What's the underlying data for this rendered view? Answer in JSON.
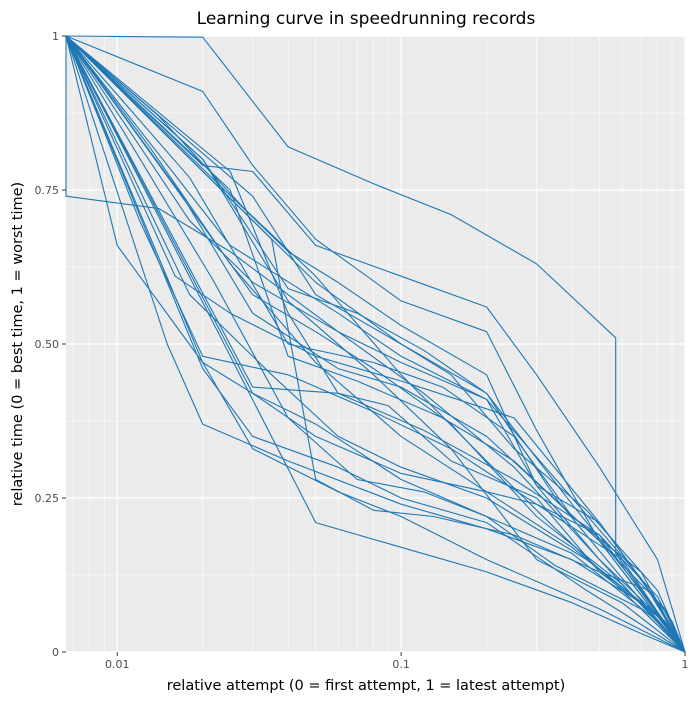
{
  "chart_data": {
    "type": "line",
    "title": "Learning curve in speedrunning records",
    "xlabel": "relative attempt (0 = first attempt, 1 = latest attempt)",
    "ylabel": "relative time (0 = best time, 1 = worst time)",
    "x_scale": "log10",
    "xlim": [
      0.0066,
      1
    ],
    "ylim": [
      0,
      1
    ],
    "x_ticks": [
      {
        "value": 0.01,
        "label": "0.01"
      },
      {
        "value": 0.1,
        "label": "0.1"
      },
      {
        "value": 1,
        "label": "1"
      }
    ],
    "y_ticks": [
      {
        "value": 0,
        "label": "0"
      },
      {
        "value": 0.25,
        "label": "0.25"
      },
      {
        "value": 0.5,
        "label": "0.50"
      },
      {
        "value": 0.75,
        "label": "0.75"
      },
      {
        "value": 1,
        "label": "1"
      }
    ],
    "grid": true,
    "line_color": "#1f77b4",
    "panel_color": "#ebebeb",
    "series": [
      {
        "x": [
          0.0066,
          0.02,
          0.04,
          0.08,
          0.15,
          0.3,
          0.57,
          0.57,
          1
        ],
        "y": [
          1,
          0.998,
          0.82,
          0.76,
          0.71,
          0.63,
          0.51,
          0.16,
          0
        ]
      },
      {
        "x": [
          0.0066,
          0.02,
          0.03,
          0.05,
          0.1,
          0.2,
          0.3,
          0.5,
          1
        ],
        "y": [
          1,
          0.91,
          0.79,
          0.67,
          0.57,
          0.52,
          0.36,
          0.18,
          0
        ]
      },
      {
        "x": [
          0.0066,
          0.02,
          0.04,
          0.07,
          0.12,
          0.2,
          0.4,
          0.7,
          1
        ],
        "y": [
          1,
          0.8,
          0.59,
          0.55,
          0.49,
          0.42,
          0.24,
          0.1,
          0
        ]
      },
      {
        "x": [
          0.0066,
          0.014,
          0.028,
          0.05,
          0.1,
          0.2,
          0.35,
          0.6,
          1
        ],
        "y": [
          1,
          0.87,
          0.72,
          0.61,
          0.45,
          0.31,
          0.2,
          0.1,
          0
        ]
      },
      {
        "x": [
          0.0066,
          0.012,
          0.02,
          0.04,
          0.08,
          0.15,
          0.3,
          0.6,
          1
        ],
        "y": [
          1,
          0.7,
          0.48,
          0.45,
          0.39,
          0.33,
          0.24,
          0.15,
          0
        ]
      },
      {
        "x": [
          0.0066,
          0.015,
          0.02,
          0.04,
          0.1,
          0.2,
          0.4,
          0.7,
          1
        ],
        "y": [
          1,
          0.5,
          0.37,
          0.31,
          0.24,
          0.2,
          0.15,
          0.08,
          0
        ]
      },
      {
        "x": [
          0.0066,
          0.01,
          0.02,
          0.03,
          0.06,
          0.1,
          0.2,
          0.5,
          1
        ],
        "y": [
          1,
          0.66,
          0.47,
          0.33,
          0.26,
          0.22,
          0.15,
          0.07,
          0
        ]
      },
      {
        "x": [
          0.0066,
          0.013,
          0.025,
          0.05,
          0.1,
          0.2,
          0.4,
          0.8,
          1
        ],
        "y": [
          1,
          0.82,
          0.63,
          0.47,
          0.35,
          0.26,
          0.17,
          0.06,
          0
        ]
      },
      {
        "x": [
          0.0066,
          0.0066,
          0.014,
          0.025,
          0.06,
          0.12,
          0.25,
          0.5,
          1
        ],
        "y": [
          1,
          0.74,
          0.72,
          0.65,
          0.52,
          0.42,
          0.3,
          0.15,
          0
        ]
      },
      {
        "x": [
          0.0066,
          0.02,
          0.03,
          0.05,
          0.1,
          0.2,
          0.3,
          0.5,
          0.8,
          1
        ],
        "y": [
          1,
          0.79,
          0.78,
          0.66,
          0.61,
          0.56,
          0.45,
          0.3,
          0.15,
          0
        ]
      },
      {
        "x": [
          0.0066,
          0.018,
          0.03,
          0.06,
          0.1,
          0.2,
          0.4,
          0.7,
          1
        ],
        "y": [
          1,
          0.7,
          0.6,
          0.52,
          0.47,
          0.41,
          0.25,
          0.12,
          0
        ]
      },
      {
        "x": [
          0.0066,
          0.016,
          0.025,
          0.05,
          0.1,
          0.25,
          0.5,
          0.8,
          1
        ],
        "y": [
          1,
          0.61,
          0.55,
          0.48,
          0.44,
          0.38,
          0.21,
          0.08,
          0
        ]
      },
      {
        "x": [
          0.0066,
          0.02,
          0.03,
          0.05,
          0.1,
          0.2,
          0.4,
          0.8,
          1
        ],
        "y": [
          1,
          0.47,
          0.42,
          0.37,
          0.28,
          0.22,
          0.16,
          0.05,
          0
        ]
      },
      {
        "x": [
          0.0066,
          0.025,
          0.04,
          0.07,
          0.14,
          0.25,
          0.5,
          0.85,
          1
        ],
        "y": [
          1,
          0.75,
          0.48,
          0.44,
          0.38,
          0.31,
          0.18,
          0.07,
          0
        ]
      },
      {
        "x": [
          0.0066,
          0.03,
          0.05,
          0.1,
          0.15,
          0.25,
          0.45,
          0.8,
          1
        ],
        "y": [
          1,
          0.74,
          0.58,
          0.5,
          0.45,
          0.33,
          0.23,
          0.1,
          0
        ]
      },
      {
        "x": [
          0.0066,
          0.022,
          0.04,
          0.07,
          0.12,
          0.2,
          0.35,
          0.7,
          1
        ],
        "y": [
          1,
          0.6,
          0.38,
          0.28,
          0.26,
          0.22,
          0.14,
          0.07,
          0
        ]
      },
      {
        "x": [
          0.0066,
          0.035,
          0.05,
          0.08,
          0.13,
          0.25,
          0.5,
          0.9,
          1
        ],
        "y": [
          1,
          0.67,
          0.28,
          0.23,
          0.22,
          0.19,
          0.13,
          0.04,
          0
        ]
      },
      {
        "x": [
          0.0066,
          0.03,
          0.05,
          0.1,
          0.2,
          0.3,
          0.5,
          0.8,
          1
        ],
        "y": [
          1,
          0.42,
          0.35,
          0.29,
          0.26,
          0.24,
          0.19,
          0.09,
          0
        ]
      },
      {
        "x": [
          0.0066,
          0.02,
          0.04,
          0.08,
          0.15,
          0.3,
          0.6,
          1
        ],
        "y": [
          1,
          0.8,
          0.57,
          0.45,
          0.33,
          0.15,
          0.08,
          0
        ]
      },
      {
        "x": [
          0.0066,
          0.02,
          0.05,
          0.1,
          0.2,
          0.35,
          0.6,
          1
        ],
        "y": [
          1,
          0.78,
          0.6,
          0.5,
          0.42,
          0.25,
          0.12,
          0
        ]
      },
      {
        "x": [
          0.0066,
          0.017,
          0.03,
          0.06,
          0.1,
          0.2,
          0.5,
          1
        ],
        "y": [
          1,
          0.74,
          0.55,
          0.46,
          0.43,
          0.35,
          0.18,
          0
        ]
      },
      {
        "x": [
          0.0066,
          0.025,
          0.04,
          0.06,
          0.12,
          0.25,
          0.5,
          1
        ],
        "y": [
          1,
          0.78,
          0.55,
          0.42,
          0.36,
          0.28,
          0.19,
          0
        ]
      },
      {
        "x": [
          0.0066,
          0.02,
          0.03,
          0.06,
          0.1,
          0.2,
          0.45,
          1
        ],
        "y": [
          1,
          0.46,
          0.35,
          0.3,
          0.25,
          0.21,
          0.1,
          0
        ]
      },
      {
        "x": [
          0.0066,
          0.04,
          0.06,
          0.1,
          0.2,
          0.3,
          0.5,
          0.9,
          1
        ],
        "y": [
          1,
          0.65,
          0.6,
          0.53,
          0.45,
          0.27,
          0.21,
          0.05,
          0
        ]
      },
      {
        "x": [
          0.0066,
          0.05,
          0.1,
          0.2,
          0.4,
          0.7,
          1
        ],
        "y": [
          1,
          0.21,
          0.17,
          0.13,
          0.08,
          0.03,
          0
        ]
      },
      {
        "x": [
          0.0066,
          0.03,
          0.05,
          0.08,
          0.15,
          0.3,
          0.6,
          1
        ],
        "y": [
          1,
          0.58,
          0.52,
          0.46,
          0.37,
          0.22,
          0.11,
          0
        ]
      },
      {
        "x": [
          0.0066,
          0.018,
          0.035,
          0.06,
          0.1,
          0.2,
          0.45,
          0.85,
          1
        ],
        "y": [
          1,
          0.58,
          0.45,
          0.35,
          0.3,
          0.25,
          0.15,
          0.05,
          0
        ]
      },
      {
        "x": [
          0.0066,
          0.025,
          0.06,
          0.1,
          0.2,
          0.3,
          0.5,
          0.8,
          1
        ],
        "y": [
          1,
          0.66,
          0.55,
          0.48,
          0.41,
          0.27,
          0.15,
          0.06,
          0
        ]
      },
      {
        "x": [
          0.0066,
          0.018,
          0.04,
          0.08,
          0.14,
          0.25,
          0.4,
          0.7,
          1
        ],
        "y": [
          1,
          0.77,
          0.5,
          0.47,
          0.43,
          0.35,
          0.22,
          0.13,
          0
        ]
      },
      {
        "x": [
          0.0066,
          0.03,
          0.06,
          0.09,
          0.15,
          0.3,
          0.5,
          0.75,
          1
        ],
        "y": [
          1,
          0.43,
          0.42,
          0.4,
          0.31,
          0.25,
          0.13,
          0.1,
          0
        ]
      }
    ]
  }
}
